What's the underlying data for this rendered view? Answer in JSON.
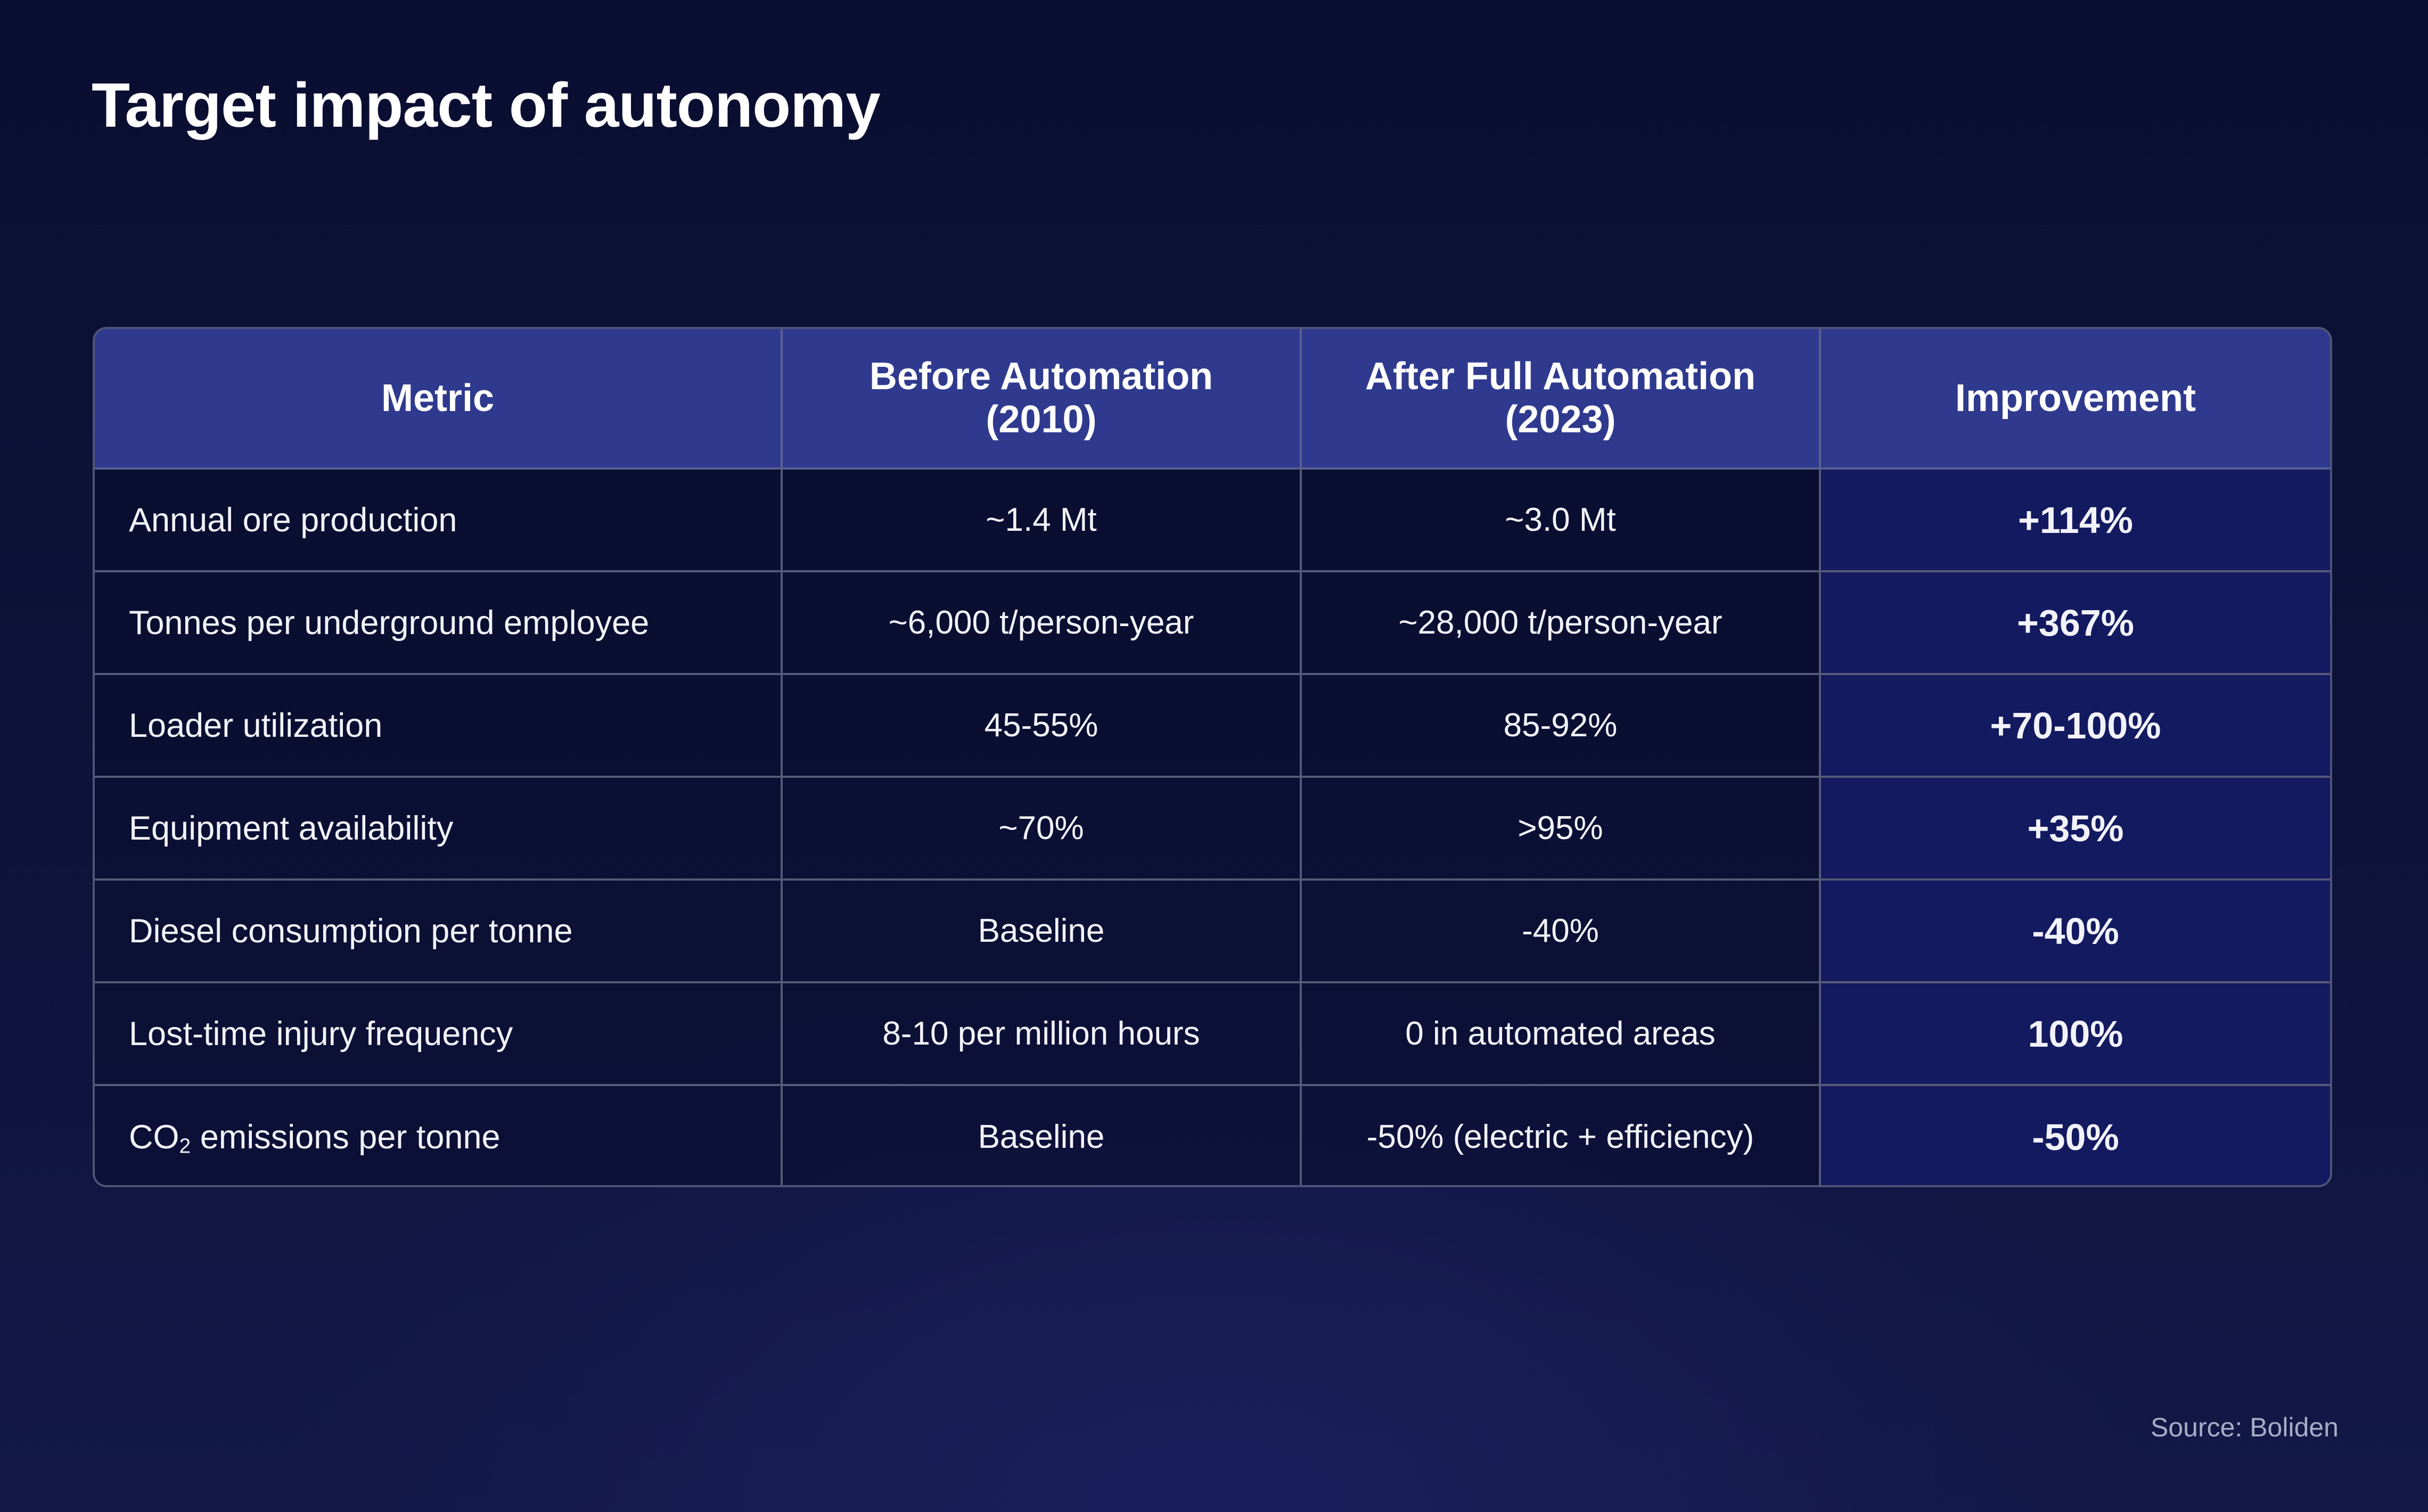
{
  "title": "Target impact of autonomy",
  "table": {
    "headers": [
      {
        "line1": "Metric",
        "line2": ""
      },
      {
        "line1": "Before Automation",
        "line2": "(2010)"
      },
      {
        "line1": "After Full Automation",
        "line2": "(2023)"
      },
      {
        "line1": "Improvement",
        "line2": ""
      }
    ],
    "rows": [
      {
        "metric": "Annual ore production",
        "before": "~1.4 Mt",
        "after": "~3.0 Mt",
        "improvement": "+114%"
      },
      {
        "metric": "Tonnes per underground employee",
        "before": "~6,000 t/person-year",
        "after": "~28,000 t/person-year",
        "improvement": "+367%"
      },
      {
        "metric": "Loader utilization",
        "before": "45-55%",
        "after": "85-92%",
        "improvement": "+70-100%"
      },
      {
        "metric": "Equipment availability",
        "before": "~70%",
        "after": ">95%",
        "improvement": "+35%"
      },
      {
        "metric": "Diesel consumption per tonne",
        "before": "Baseline",
        "after": "-40%",
        "improvement": "-40%"
      },
      {
        "metric": "Lost-time injury frequency",
        "before": "8-10 per million hours",
        "after": "0 in automated areas",
        "improvement": "100%"
      },
      {
        "metric_prefix": "CO",
        "metric_sub": "2",
        "metric_suffix": " emissions per tonne",
        "before": "Baseline",
        "after": "-50% (electric + efficiency)",
        "improvement": "-50%"
      }
    ]
  },
  "source": "Source: Boliden",
  "colors": {
    "background": "#0b0f33",
    "header": "#2f3a8f",
    "improvement_column": "#141a60",
    "border": "#545a78"
  }
}
